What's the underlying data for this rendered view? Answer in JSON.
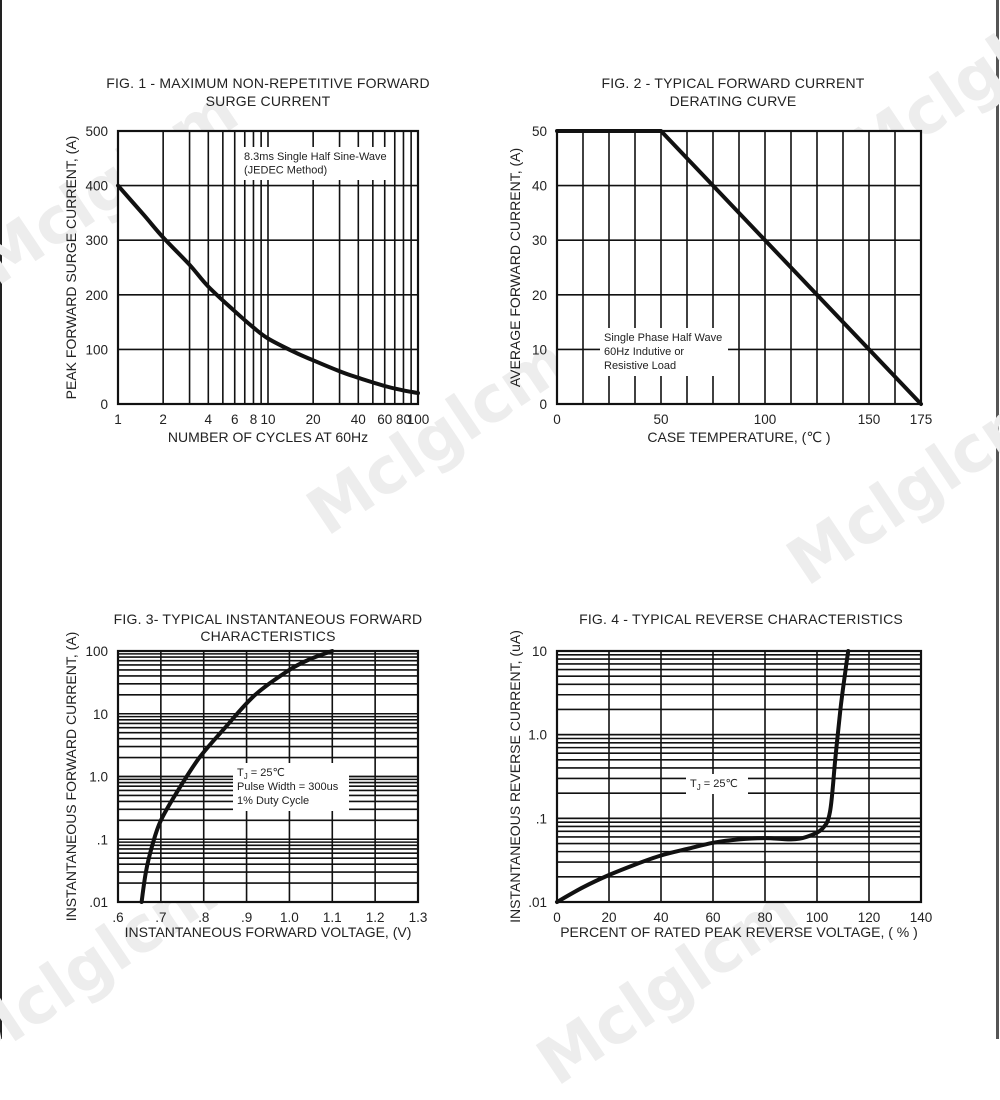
{
  "watermark": "Mclglcm",
  "chart_data": [
    {
      "id": "fig1",
      "type": "line",
      "title": [
        "FIG. 1 - MAXIMUM NON-REPETITIVE FORWARD",
        "SURGE CURRENT"
      ],
      "xlabel": "NUMBER OF CYCLES AT 60Hz",
      "ylabel": "PEAK FORWARD SURGE CURRENT, (A)",
      "x_scale": "log",
      "xlim": [
        1,
        100
      ],
      "ylim": [
        0,
        500
      ],
      "x_ticks": [
        1,
        2,
        4,
        6,
        8,
        10,
        20,
        40,
        60,
        80,
        100
      ],
      "x_tick_labels": [
        "1",
        "2",
        "4",
        "6",
        "8",
        "10",
        "20",
        "40",
        "60",
        "80",
        "100"
      ],
      "x_grid": [
        1,
        2,
        3,
        4,
        5,
        6,
        7,
        8,
        9,
        10,
        20,
        30,
        40,
        50,
        60,
        70,
        80,
        90,
        100
      ],
      "y_ticks": [
        0,
        100,
        200,
        300,
        400,
        500
      ],
      "y_tick_labels": [
        "0",
        "100",
        "200",
        "300",
        "400",
        "500"
      ],
      "annotation": [
        "8.3ms Single Half Sine-Wave",
        "(JEDEC Method)"
      ],
      "grid": true,
      "series": [
        {
          "x": [
            1,
            1.5,
            2,
            3,
            4,
            6,
            8,
            10,
            15,
            20,
            30,
            40,
            60,
            80,
            100
          ],
          "y": [
            400,
            345,
            305,
            255,
            215,
            170,
            140,
            120,
            95,
            80,
            60,
            48,
            33,
            25,
            20
          ]
        }
      ]
    },
    {
      "id": "fig2",
      "type": "line",
      "title": [
        "FIG. 2 - TYPICAL FORWARD CURRENT",
        "DERATING CURVE"
      ],
      "xlabel": "CASE TEMPERATURE, (℃ )",
      "ylabel": "AVERAGE FORWARD  CURRENT, (A)",
      "xlim": [
        0,
        175
      ],
      "ylim": [
        0,
        50
      ],
      "x_ticks": [
        0,
        50,
        100,
        150,
        175
      ],
      "x_tick_labels": [
        "0",
        "50",
        "100",
        "150",
        "175"
      ],
      "x_grid": [
        0,
        12.5,
        25,
        37.5,
        50,
        62.5,
        75,
        87.5,
        100,
        112.5,
        125,
        137.5,
        150,
        162.5,
        175
      ],
      "y_ticks": [
        0,
        10,
        20,
        30,
        40,
        50
      ],
      "y_tick_labels": [
        "0",
        "10",
        "20",
        "30",
        "40",
        "50"
      ],
      "annotation": [
        "Single Phase Half Wave",
        "60Hz Indutive or",
        "Resistive Load"
      ],
      "grid": true,
      "series": [
        {
          "x": [
            0,
            50,
            175
          ],
          "y": [
            50,
            50,
            0
          ]
        }
      ]
    },
    {
      "id": "fig3",
      "type": "line",
      "title": [
        "FIG. 3- TYPICAL INSTANTANEOUS FORWARD",
        "CHARACTERISTICS"
      ],
      "xlabel": "INSTANTANEOUS FORWARD VOLTAGE, (V)",
      "ylabel": "INSTANTANEOUS FORWARD CURRENT, (A)",
      "y_scale": "log",
      "xlim": [
        0.6,
        1.3
      ],
      "ylim": [
        0.01,
        100
      ],
      "x_ticks": [
        0.6,
        0.7,
        0.8,
        0.9,
        1.0,
        1.1,
        1.2,
        1.3
      ],
      "x_tick_labels": [
        ".6",
        ".7",
        ".8",
        ".9",
        "1.0",
        "1.1",
        "1.2",
        "1.3"
      ],
      "x_grid": [
        0.6,
        0.7,
        0.8,
        0.9,
        1.0,
        1.1,
        1.2,
        1.3
      ],
      "y_ticks": [
        0.01,
        0.1,
        1,
        10,
        100
      ],
      "y_tick_labels": [
        ".01",
        ".1",
        "1.0",
        "10",
        "100"
      ],
      "annotation": [
        "T<sub>J</sub> = 25℃",
        "Pulse Width = 300us",
        "1% Duty Cycle"
      ],
      "annotation_plain": [
        "TJ = 25℃",
        "Pulse Width = 300us",
        "1% Duty Cycle"
      ],
      "grid": true,
      "series": [
        {
          "x": [
            0.655,
            0.665,
            0.68,
            0.7,
            0.74,
            0.79,
            0.85,
            0.92,
            1.0,
            1.05,
            1.1
          ],
          "y": [
            0.01,
            0.03,
            0.08,
            0.2,
            0.6,
            2.0,
            6.0,
            20,
            50,
            75,
            100
          ]
        }
      ]
    },
    {
      "id": "fig4",
      "type": "line",
      "title": [
        "FIG. 4 - TYPICAL REVERSE CHARACTERISTICS"
      ],
      "xlabel": "PERCENT OF RATED PEAK REVERSE VOLTAGE, ( % )",
      "ylabel": "INSTANTANEOUS REVERSE CURRENT, (uA)",
      "y_scale": "log",
      "xlim": [
        0,
        140
      ],
      "ylim": [
        0.01,
        10
      ],
      "x_ticks": [
        0,
        20,
        40,
        60,
        80,
        100,
        120,
        140
      ],
      "x_tick_labels": [
        "0",
        "20",
        "40",
        "60",
        "80",
        "100",
        "120",
        "140"
      ],
      "x_grid": [
        0,
        20,
        40,
        60,
        80,
        100,
        120,
        140
      ],
      "y_ticks": [
        0.01,
        0.1,
        1,
        10
      ],
      "y_tick_labels": [
        ".01",
        ".1",
        "1.0",
        "10"
      ],
      "annotation": [
        "T<sub>J</sub> = 25℃"
      ],
      "annotation_plain": [
        "TJ = 25℃"
      ],
      "grid": true,
      "series": [
        {
          "x": [
            0,
            10,
            20,
            30,
            40,
            50,
            60,
            70,
            80,
            90,
            96,
            102,
            105,
            107,
            109,
            111,
            112
          ],
          "y": [
            0.01,
            0.015,
            0.021,
            0.028,
            0.036,
            0.043,
            0.051,
            0.056,
            0.058,
            0.056,
            0.06,
            0.075,
            0.12,
            0.5,
            2.0,
            6.0,
            10
          ]
        }
      ]
    }
  ]
}
